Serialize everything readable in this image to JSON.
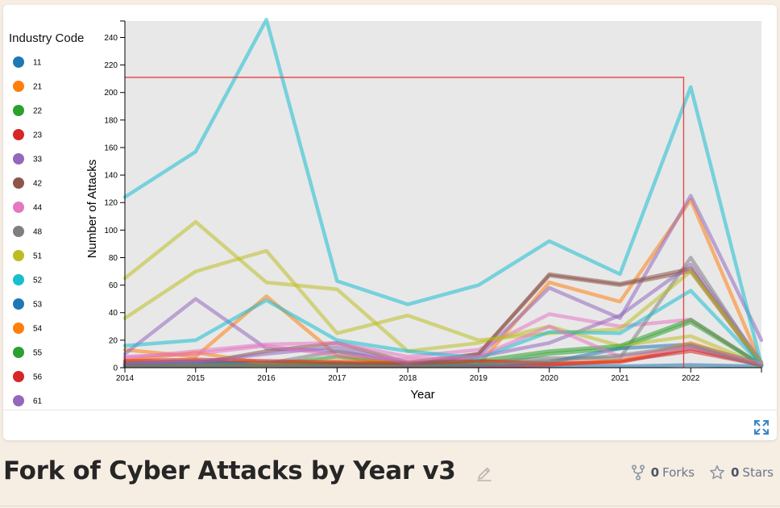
{
  "page": {
    "title": "Fork of Cyber Attacks by Year v3",
    "forks_count": "0",
    "forks_label": "Forks",
    "stars_count": "0",
    "stars_label": "Stars"
  },
  "colors": {
    "plot_background": "#e8e8e8",
    "highlight_line": "#e84040",
    "accent": "#3a86c8"
  },
  "icons": {
    "fullscreen": "expand-icon",
    "edit": "pencil-icon",
    "forks": "fork-icon",
    "stars": "star-icon"
  },
  "chart_data": {
    "type": "line",
    "title": "",
    "xlabel": "Year",
    "ylabel": "Number of Attacks",
    "legend_title": "Industry Code",
    "legend_position": "left",
    "xlim": [
      2014,
      2023
    ],
    "ylim": [
      0,
      252
    ],
    "x_ticks": [
      "2014",
      "2015",
      "2016",
      "2017",
      "2018",
      "2019",
      "2020",
      "2021",
      "2022"
    ],
    "y_ticks": [
      "0",
      "20",
      "40",
      "60",
      "80",
      "100",
      "120",
      "140",
      "160",
      "180",
      "200",
      "220",
      "240"
    ],
    "x": [
      2014,
      2015,
      2016,
      2017,
      2018,
      2019,
      2020,
      2021,
      2022,
      2023
    ],
    "crosshair": {
      "x": 2021.9,
      "y": 211
    },
    "series": [
      {
        "name": "11",
        "color": "#1f77b4",
        "values": [
          2,
          1,
          2,
          1,
          1,
          1,
          1,
          1,
          2,
          1
        ]
      },
      {
        "name": "21",
        "color": "#ff7f0e",
        "values": [
          13,
          8,
          52,
          9,
          2,
          2,
          62,
          48,
          122,
          2
        ]
      },
      {
        "name": "22",
        "color": "#2ca02c",
        "values": [
          3,
          3,
          2,
          8,
          2,
          2,
          10,
          14,
          33,
          2
        ]
      },
      {
        "name": "23",
        "color": "#d62728",
        "values": [
          3,
          4,
          3,
          2,
          1,
          1,
          2,
          5,
          12,
          2
        ]
      },
      {
        "name": "33",
        "color": "#9467bd",
        "values": [
          10,
          50,
          14,
          12,
          3,
          8,
          58,
          36,
          125,
          20
        ]
      },
      {
        "name": "42",
        "color": "#8c564b",
        "values": [
          2,
          3,
          12,
          18,
          4,
          10,
          67,
          60,
          70,
          2
        ]
      },
      {
        "name": "44",
        "color": "#e377c2",
        "values": [
          7,
          12,
          17,
          18,
          8,
          13,
          39,
          30,
          35,
          2
        ]
      },
      {
        "name": "48",
        "color": "#7f7f7f",
        "values": [
          4,
          5,
          3,
          12,
          3,
          4,
          7,
          7,
          80,
          2
        ]
      },
      {
        "name": "51",
        "color": "#bcbd22",
        "values": [
          65,
          106,
          62,
          57,
          12,
          18,
          30,
          16,
          23,
          2
        ]
      },
      {
        "name": "52",
        "color": "#17becf",
        "values": [
          124,
          157,
          253,
          63,
          46,
          60,
          92,
          68,
          204,
          2
        ]
      },
      {
        "name": "53",
        "color": "#1f77b4",
        "values": [
          2,
          3,
          4,
          3,
          2,
          2,
          4,
          14,
          17,
          3
        ]
      },
      {
        "name": "54",
        "color": "#ff7f0e",
        "values": [
          5,
          11,
          3,
          5,
          4,
          5,
          3,
          5,
          18,
          2
        ]
      },
      {
        "name": "55",
        "color": "#2ca02c",
        "values": [
          1,
          2,
          2,
          3,
          2,
          5,
          12,
          16,
          35,
          2
        ]
      },
      {
        "name": "56",
        "color": "#d62728",
        "values": [
          5,
          6,
          5,
          4,
          3,
          5,
          3,
          4,
          14,
          2
        ]
      },
      {
        "name": "61",
        "color": "#9467bd",
        "values": [
          3,
          4,
          10,
          15,
          3,
          8,
          18,
          38,
          75,
          4
        ]
      },
      {
        "name": "",
        "color": "#8c564b",
        "values": [
          1,
          1,
          1,
          1,
          1,
          10,
          68,
          61,
          72,
          2
        ]
      },
      {
        "name": "",
        "color": "#bcbd22",
        "values": [
          36,
          70,
          85,
          25,
          38,
          20,
          25,
          28,
          70,
          3
        ]
      },
      {
        "name": "",
        "color": "#17becf",
        "values": [
          16,
          20,
          49,
          20,
          12,
          7,
          26,
          25,
          56,
          2
        ]
      },
      {
        "name": "",
        "color": "#e377c2",
        "values": [
          8,
          10,
          16,
          9,
          6,
          8,
          30,
          8,
          15,
          3
        ]
      },
      {
        "name": "",
        "color": "#7f7f7f",
        "values": [
          1,
          2,
          2,
          1,
          1,
          2,
          5,
          9,
          16,
          1
        ]
      }
    ]
  }
}
